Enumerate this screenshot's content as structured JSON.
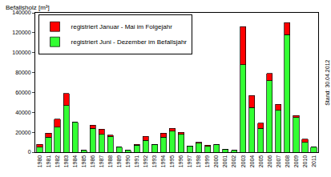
{
  "chart_data": {
    "type": "bar",
    "y_label": "Befallsholz [m³]",
    "annotations": [
      "Stand: 30.04.2012"
    ],
    "categories": [
      "1980",
      "1981",
      "1982",
      "1983",
      "1984",
      "1985",
      "1986",
      "1987",
      "1988",
      "1989",
      "1990",
      "1991",
      "1992",
      "1993",
      "1994",
      "1995",
      "1996",
      "1997",
      "1998",
      "1999",
      "2000",
      "2001",
      "2002",
      "2003",
      "2004",
      "2005",
      "2006",
      "2007",
      "2008",
      "2009",
      "2010",
      "2011"
    ],
    "series": [
      {
        "name": "registriert Juni - Dezember im Befallsjahr",
        "color": "#33ff33",
        "values": [
          5000,
          15000,
          25000,
          47000,
          30000,
          2000,
          24000,
          18000,
          16000,
          5000,
          2000,
          7000,
          12000,
          8000,
          15000,
          21000,
          18000,
          6000,
          9000,
          6000,
          8000,
          3000,
          2000,
          88000,
          45000,
          24000,
          72000,
          42000,
          118000,
          35000,
          10000,
          5000
        ]
      },
      {
        "name": "registriert Januar - Mai im Folgejahr",
        "color": "#ff0000",
        "values": [
          3000,
          4000,
          8000,
          12000,
          0,
          0,
          3000,
          5000,
          1000,
          0,
          0,
          1000,
          4000,
          0,
          4000,
          3000,
          2000,
          0,
          1000,
          1000,
          0,
          0,
          0,
          38000,
          12000,
          5000,
          7000,
          6000,
          12000,
          2000,
          3000,
          0
        ]
      }
    ],
    "stacked": true,
    "legend": "top-left",
    "grid": false,
    "ylim": [
      0,
      140000
    ],
    "yticks": [
      0,
      20000,
      40000,
      60000,
      80000,
      100000,
      120000,
      140000
    ]
  }
}
